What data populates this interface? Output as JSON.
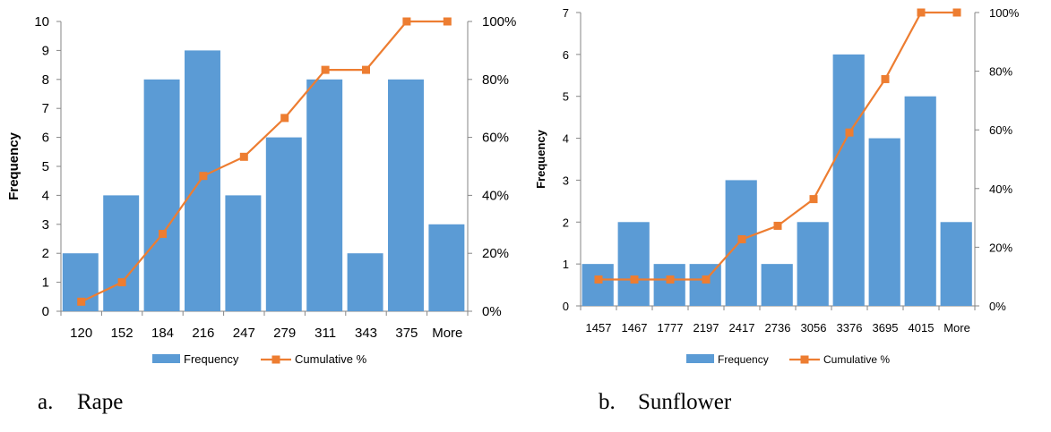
{
  "chart_data": [
    {
      "type": "bar",
      "title": "",
      "xlabel": "",
      "ylabel": "Frequency",
      "categories": [
        "120",
        "152",
        "184",
        "216",
        "247",
        "279",
        "311",
        "343",
        "375",
        "More"
      ],
      "series": [
        {
          "name": "Frequency",
          "kind": "bar",
          "axis": "left",
          "values": [
            2,
            4,
            8,
            9,
            4,
            6,
            8,
            2,
            8,
            3
          ]
        },
        {
          "name": "Cumulative %",
          "kind": "line",
          "axis": "right",
          "values": [
            3.3,
            10.0,
            26.7,
            46.7,
            53.3,
            66.7,
            83.3,
            83.3,
            100,
            100
          ]
        }
      ],
      "ylim": [
        0,
        10
      ],
      "yticks": [
        "0",
        "1",
        "2",
        "3",
        "4",
        "5",
        "6",
        "7",
        "8",
        "9",
        "10"
      ],
      "y2lim": [
        0,
        100
      ],
      "y2ticks": [
        "0%",
        "20%",
        "40%",
        "60%",
        "80%",
        "100%"
      ],
      "legend_position": "bottom",
      "grid": false
    },
    {
      "type": "bar",
      "title": "",
      "xlabel": "",
      "ylabel": "Frequency",
      "categories": [
        "1457",
        "1467",
        "1777",
        "2197",
        "2417",
        "2736",
        "3056",
        "3376",
        "3695",
        "4015",
        "More"
      ],
      "series": [
        {
          "name": "Frequency",
          "kind": "bar",
          "axis": "left",
          "values": [
            1,
            2,
            1,
            1,
            3,
            1,
            2,
            6,
            4,
            5,
            2
          ]
        },
        {
          "name": "Cumulative %",
          "kind": "line",
          "axis": "right",
          "values": [
            9,
            9,
            9,
            9,
            22.7,
            27.3,
            36.4,
            59.1,
            77.3,
            100,
            100
          ]
        }
      ],
      "ylim": [
        0,
        7
      ],
      "yticks": [
        "0",
        "1",
        "2",
        "3",
        "4",
        "5",
        "6",
        "7"
      ],
      "y2lim": [
        0,
        100
      ],
      "y2ticks": [
        "0%",
        "20%",
        "40%",
        "60%",
        "80%",
        "100%"
      ],
      "legend_position": "bottom",
      "grid": false
    }
  ],
  "colors": {
    "bar": "#5B9BD5",
    "line": "#ED7D31",
    "axis": "#868686"
  },
  "legend": {
    "frequency_label": "Frequency",
    "cumulative_label": "Cumulative %"
  },
  "captions": {
    "a_letter": "a.",
    "a_text": "Rape",
    "b_letter": "b.",
    "b_text": "Sunflower"
  }
}
